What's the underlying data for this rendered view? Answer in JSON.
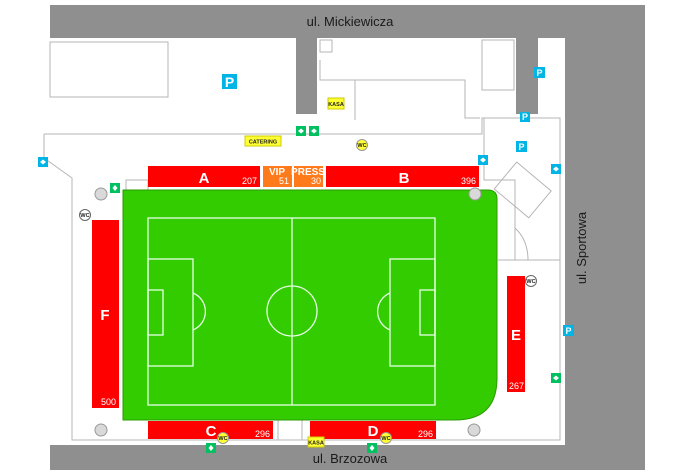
{
  "streets": {
    "north": "ul. Mickiewicza",
    "south": "ul. Brzozowa",
    "east": "ul. Sportowa"
  },
  "stands": {
    "A": {
      "letter": "A",
      "capacity": "207"
    },
    "vip": {
      "letter": "VIP",
      "capacity": "51"
    },
    "press": {
      "letter": "PRESS",
      "capacity": "30"
    },
    "B": {
      "letter": "B",
      "capacity": "396"
    },
    "C": {
      "letter": "C",
      "capacity": "296"
    },
    "D": {
      "letter": "D",
      "capacity": "296"
    },
    "E": {
      "letter": "E",
      "capacity": "267"
    },
    "F": {
      "letter": "F",
      "capacity": "500"
    }
  },
  "amenities": {
    "parking": "P",
    "catering": "CATERING",
    "kasa": "KASA",
    "wc": "WC"
  },
  "colors": {
    "street": "#8f8f8f",
    "stand": "#ff0000",
    "vip_press": "#ff7a1a",
    "pitch": "#33cc00",
    "parking": "#00b4e6",
    "exit": "#00c060",
    "amenity_label": "#ffff33"
  }
}
